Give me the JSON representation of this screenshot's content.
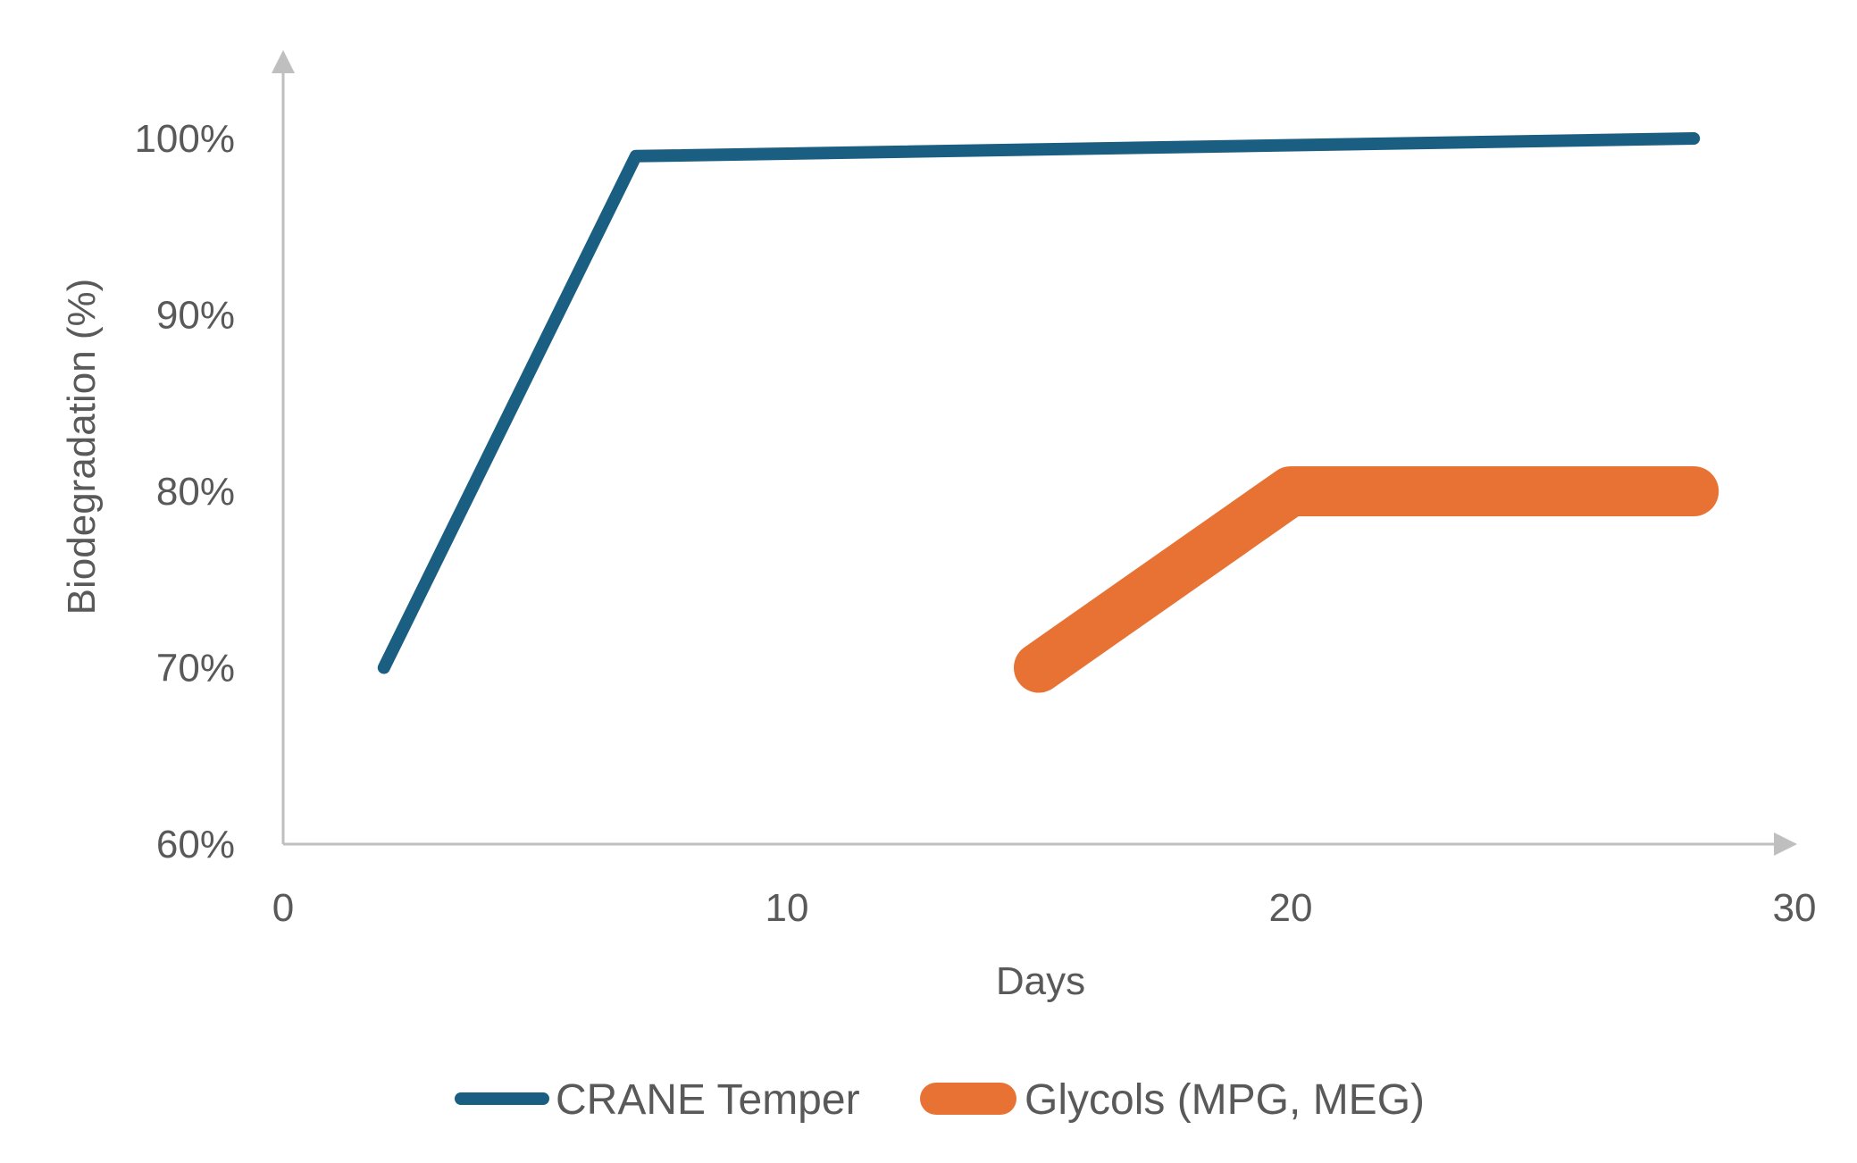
{
  "chart_data": {
    "type": "line",
    "title": "",
    "xlabel": "Days",
    "ylabel": "Biodegradation (%)",
    "xlim": [
      0,
      30
    ],
    "ylim": [
      60,
      100
    ],
    "x_ticks": [
      0,
      10,
      20,
      30
    ],
    "y_ticks": [
      60,
      70,
      80,
      90,
      100
    ],
    "x_tick_labels": [
      "0",
      "10",
      "20",
      "30"
    ],
    "y_tick_labels": [
      "60%",
      "70%",
      "80%",
      "90%",
      "100%"
    ],
    "grid": false,
    "legend_position": "bottom",
    "series": [
      {
        "name": "CRANE Temper",
        "color": "#1a5f82",
        "points": [
          [
            2,
            70
          ],
          [
            7,
            99
          ],
          [
            28,
            100
          ]
        ]
      },
      {
        "name": "Glycols (MPG, MEG)",
        "color": "#e87234",
        "points": [
          [
            15,
            70
          ],
          [
            20,
            80
          ],
          [
            28,
            80
          ]
        ]
      }
    ]
  }
}
